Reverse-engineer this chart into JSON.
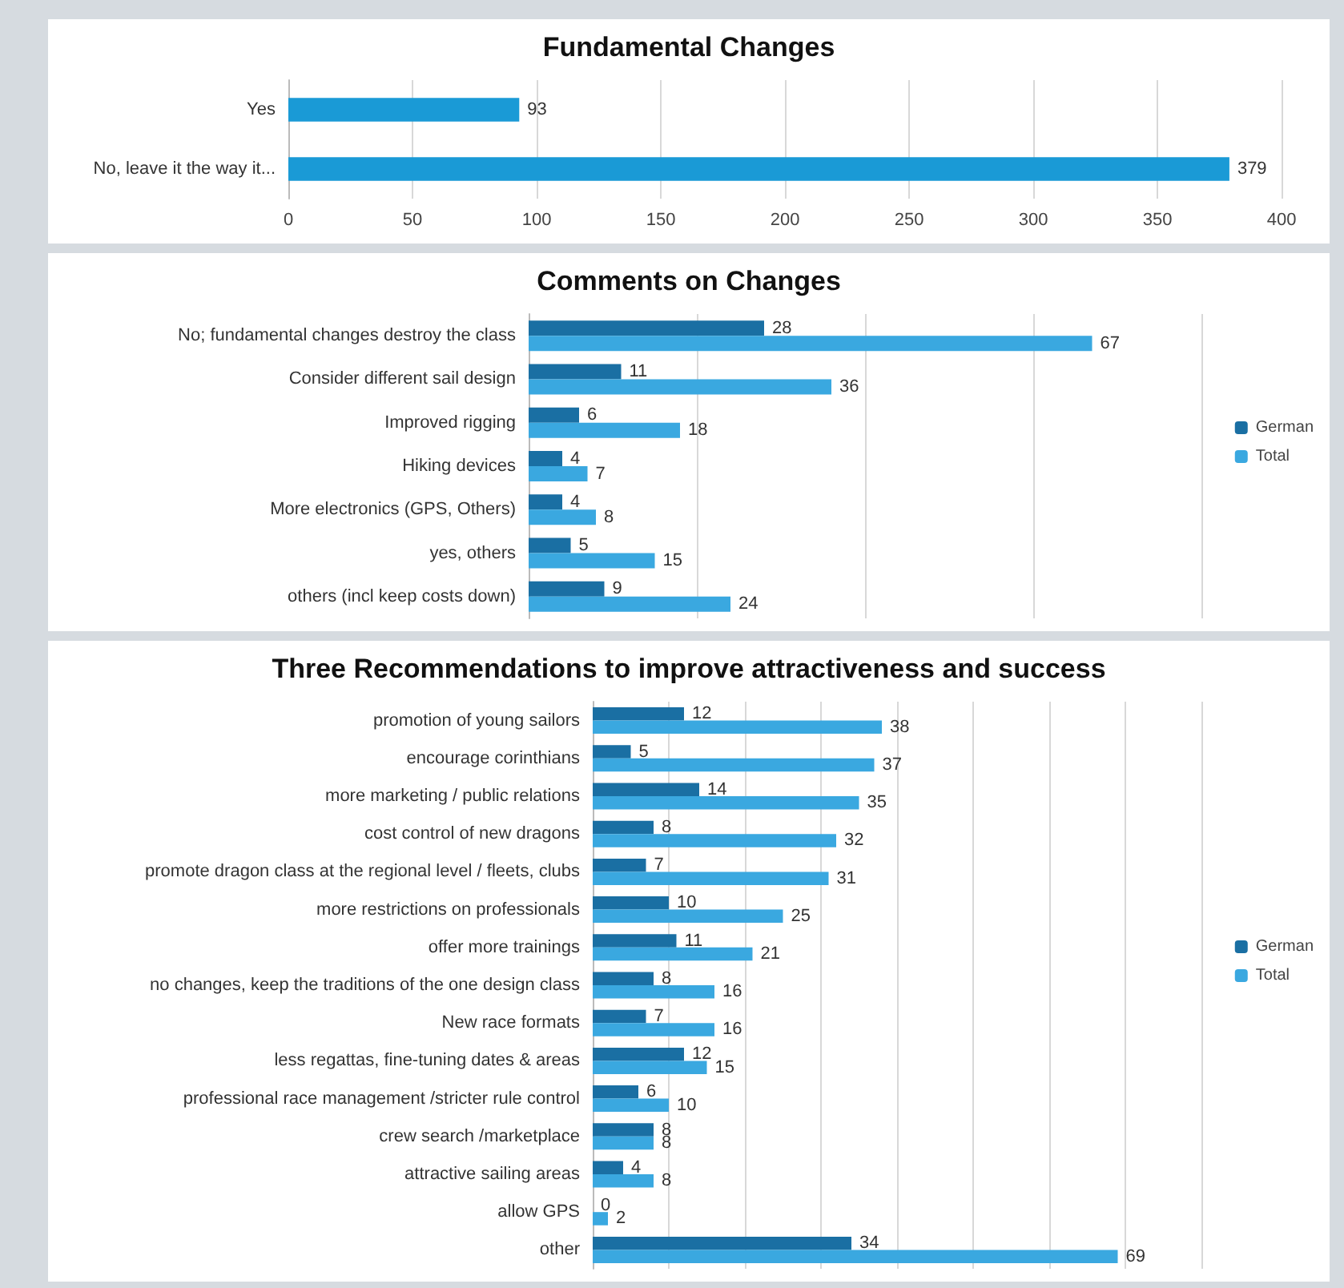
{
  "chart_data": [
    {
      "type": "bar",
      "orientation": "horizontal",
      "title": "Fundamental Changes",
      "categories": [
        "Yes",
        "No, leave it the way it..."
      ],
      "values": [
        93,
        379
      ],
      "color": "#1a9ad6",
      "xlim": [
        0,
        400
      ],
      "xticks": [
        0,
        50,
        100,
        150,
        200,
        250,
        300,
        350,
        400
      ],
      "grid": true,
      "data_labels": true
    },
    {
      "type": "bar",
      "orientation": "horizontal",
      "title": "Comments on Changes",
      "categories": [
        "No; fundamental changes destroy the class",
        "Consider different sail design",
        "Improved rigging",
        "Hiking devices",
        "More electronics (GPS, Others)",
        "yes, others",
        "others (incl keep costs down)"
      ],
      "series": [
        {
          "name": "German",
          "color": "#1a6fa3",
          "values": [
            28,
            11,
            6,
            4,
            4,
            5,
            9
          ]
        },
        {
          "name": "Total",
          "color": "#3aa8e0",
          "values": [
            67,
            36,
            18,
            7,
            8,
            15,
            24
          ]
        }
      ],
      "xlim": [
        0,
        80
      ],
      "xticks": [
        {
          "value": 0,
          "label": null
        },
        {
          "value": 20,
          "label": null
        },
        {
          "value": 40,
          "label": null
        },
        {
          "value": 60,
          "label": null
        },
        {
          "value": 80,
          "label": null
        }
      ],
      "grid": true,
      "legend": "right",
      "data_labels": true
    },
    {
      "type": "bar",
      "orientation": "horizontal",
      "title": "Three Recommendations to improve attractiveness and success",
      "categories": [
        "promotion of young sailors",
        "encourage corinthians",
        "more marketing / public relations",
        "cost control of new dragons",
        "promote dragon class at the regional level / fleets, clubs",
        "more restrictions on professionals",
        "offer more trainings",
        "no changes, keep the traditions of the one design class",
        "New race formats",
        "less regattas, fine-tuning dates & areas",
        "professional race management /stricter rule control",
        "crew search /marketplace",
        "attractive sailing areas",
        "allow GPS",
        "other"
      ],
      "series": [
        {
          "name": "German",
          "color": "#1a6fa3",
          "values": [
            12,
            5,
            14,
            8,
            7,
            10,
            11,
            8,
            7,
            12,
            6,
            8,
            4,
            0,
            34
          ]
        },
        {
          "name": "Total",
          "color": "#3aa8e0",
          "values": [
            38,
            37,
            35,
            32,
            31,
            25,
            21,
            16,
            16,
            15,
            10,
            8,
            8,
            2,
            69
          ]
        }
      ],
      "xlim": [
        0,
        80
      ],
      "xticks": [
        {
          "value": 0,
          "label": null
        },
        {
          "value": 10,
          "label": null
        },
        {
          "value": 20,
          "label": null
        },
        {
          "value": 30,
          "label": null
        },
        {
          "value": 40,
          "label": null
        },
        {
          "value": 50,
          "label": null
        },
        {
          "value": 60,
          "label": null
        },
        {
          "value": 70,
          "label": null
        },
        {
          "value": 80,
          "label": null
        }
      ],
      "grid": true,
      "legend": "right",
      "data_labels": true
    }
  ]
}
